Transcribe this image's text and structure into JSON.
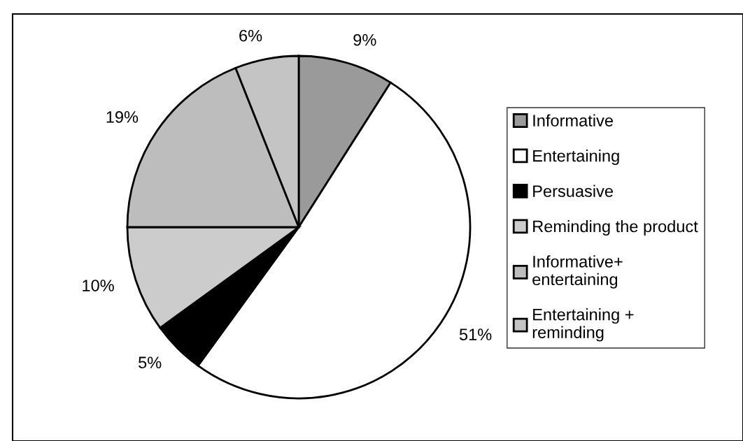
{
  "chart_data": {
    "type": "pie",
    "categories": [
      "Informative",
      "Entertaining",
      "Persuasive",
      "Reminding the product",
      "Informative+\nentertaining",
      "Entertaining +\nreminding"
    ],
    "values": [
      9,
      51,
      5,
      10,
      19,
      6
    ],
    "value_labels": [
      "9%",
      "51%",
      "5%",
      "10%",
      "19%",
      "6%"
    ],
    "colors": [
      "#9a9a9a",
      "#ffffff",
      "#000000",
      "#cccccc",
      "#bdbdbd",
      "#c4c4c4"
    ],
    "legend": "right"
  }
}
